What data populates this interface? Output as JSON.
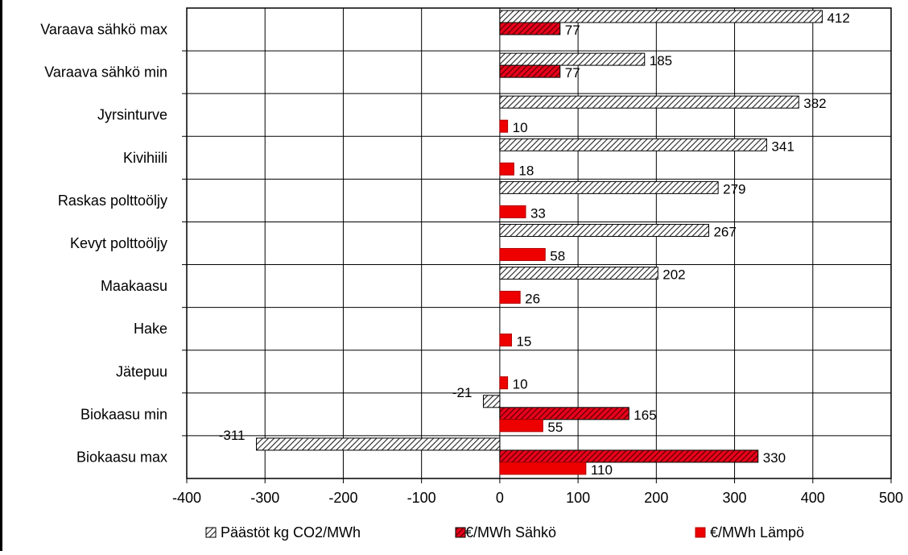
{
  "chart_data": {
    "type": "bar",
    "orientation": "horizontal",
    "title": "",
    "xlabel": "",
    "ylabel": "",
    "xlim": [
      -400,
      500
    ],
    "x_ticks": [
      -400,
      -300,
      -200,
      -100,
      0,
      100,
      200,
      300,
      400,
      500
    ],
    "x_tick_labels": [
      "-400",
      "-300",
      "-200",
      "-100",
      "0",
      "100",
      "200",
      "300",
      "400",
      "500"
    ],
    "grid": true,
    "legend_position": "bottom",
    "categories": [
      "Varaava sähkö max",
      "Varaava sähkö min",
      "Jyrsinturve",
      "Kivihiili",
      "Raskas polttoöljy",
      "Kevyt polttoöljy",
      "Maakaasu",
      "Hake",
      "Jätepuu",
      "Biokaasu min",
      "Biokaasu max"
    ],
    "series": [
      {
        "name": "Päästöt kg CO2/MWh",
        "color": "#3a3a3a",
        "pattern": "hatch-light",
        "values": [
          412,
          185,
          382,
          341,
          279,
          267,
          202,
          null,
          null,
          -21,
          -311
        ],
        "labels": [
          "412",
          "185",
          "382",
          "341",
          "279",
          "267",
          "202",
          "",
          "",
          "-21",
          "-311"
        ]
      },
      {
        "name": "€/MWh Sähkö",
        "color": "#e8001c",
        "pattern": "hatch-dark",
        "values": [
          77,
          77,
          null,
          null,
          null,
          null,
          null,
          null,
          null,
          165,
          330
        ],
        "labels": [
          "77",
          "77",
          "",
          "",
          "",
          "",
          "",
          "",
          "",
          "165",
          "330"
        ]
      },
      {
        "name": "€/MWh Lämpö",
        "color": "#ee0000",
        "pattern": "solid",
        "values": [
          null,
          null,
          10,
          18,
          33,
          58,
          26,
          15,
          10,
          55,
          110
        ],
        "labels": [
          "",
          "",
          "10",
          "18",
          "33",
          "58",
          "26",
          "15",
          "10",
          "55",
          "110"
        ]
      }
    ]
  }
}
